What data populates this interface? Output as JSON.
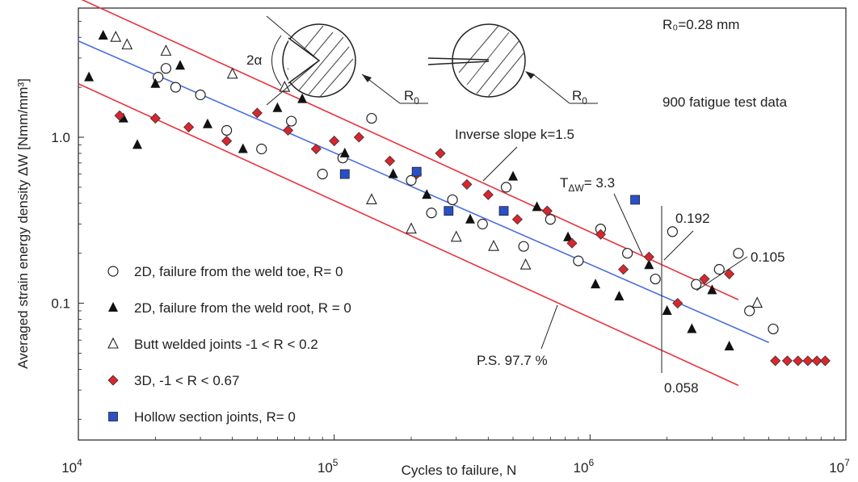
{
  "chart_data": {
    "type": "scatter",
    "xscale": "log",
    "yscale": "log",
    "xlim": [
      10000,
      10000000
    ],
    "ylim": [
      0.015,
      6
    ],
    "xlabel": "Cycles to failure, N",
    "ylabel": "Averaged strain energy density ΔW [Nmm/mm³]",
    "x_ticks": [
      {
        "value": 10000,
        "base": "10",
        "exp": "4"
      },
      {
        "value": 100000,
        "base": "10",
        "exp": "5"
      },
      {
        "value": 1000000,
        "base": "10",
        "exp": "6"
      },
      {
        "value": 10000000,
        "base": "10",
        "exp": "7"
      }
    ],
    "y_ticks": [
      {
        "value": 1.0,
        "label": "1.0"
      },
      {
        "value": 0.1,
        "label": "0.1"
      }
    ],
    "grid": false,
    "legend_position": "bottom-left",
    "bands": [
      {
        "name": "mean",
        "color": "#4a6fdc",
        "points": [
          [
            10000,
            3.8
          ],
          [
            5000000,
            0.058
          ]
        ]
      },
      {
        "name": "upper",
        "color": "#e8323c",
        "points": [
          [
            10000,
            6.9
          ],
          [
            3800000,
            0.105
          ]
        ]
      },
      {
        "name": "lower",
        "color": "#e8323c",
        "points": [
          [
            10000,
            2.1
          ],
          [
            3800000,
            0.032
          ]
        ]
      }
    ],
    "series": [
      {
        "name": "2D, failure from the weld toe, R= 0",
        "marker": "circle",
        "points": [
          [
            20500,
            2.3
          ],
          [
            22000,
            2.6
          ],
          [
            24000,
            2.0
          ],
          [
            30000,
            1.8
          ],
          [
            38000,
            1.1
          ],
          [
            52000,
            0.85
          ],
          [
            68000,
            1.25
          ],
          [
            90000,
            0.6
          ],
          [
            108000,
            0.75
          ],
          [
            140000,
            1.3
          ],
          [
            200000,
            0.55
          ],
          [
            240000,
            0.35
          ],
          [
            290000,
            0.42
          ],
          [
            380000,
            0.3
          ],
          [
            470000,
            0.5
          ],
          [
            550000,
            0.22
          ],
          [
            700000,
            0.32
          ],
          [
            900000,
            0.18
          ],
          [
            1100000,
            0.28
          ],
          [
            1400000,
            0.2
          ],
          [
            1800000,
            0.14
          ],
          [
            2100000,
            0.27
          ],
          [
            2600000,
            0.13
          ],
          [
            3200000,
            0.16
          ],
          [
            3800000,
            0.2
          ],
          [
            4200000,
            0.09
          ],
          [
            5200000,
            0.07
          ]
        ]
      },
      {
        "name": "2D, failure from the weld root, R = 0",
        "marker": "triangle",
        "points": [
          [
            11000,
            2.3
          ],
          [
            12500,
            4.1
          ],
          [
            15000,
            1.3
          ],
          [
            17000,
            0.9
          ],
          [
            20000,
            2.1
          ],
          [
            25000,
            2.7
          ],
          [
            32000,
            1.2
          ],
          [
            44000,
            0.85
          ],
          [
            60000,
            1.5
          ],
          [
            75000,
            1.7
          ],
          [
            110000,
            0.8
          ],
          [
            170000,
            0.6
          ],
          [
            230000,
            0.45
          ],
          [
            340000,
            0.32
          ],
          [
            500000,
            0.58
          ],
          [
            620000,
            0.38
          ],
          [
            820000,
            0.25
          ],
          [
            1050000,
            0.13
          ],
          [
            1300000,
            0.11
          ],
          [
            1700000,
            0.17
          ],
          [
            2000000,
            0.09
          ],
          [
            2500000,
            0.07
          ],
          [
            3000000,
            0.12
          ],
          [
            3500000,
            0.055
          ]
        ]
      },
      {
        "name": "Butt welded joints -1 < R < 0.2",
        "marker": "triangle-open",
        "points": [
          [
            14000,
            4.0
          ],
          [
            15500,
            3.6
          ],
          [
            22000,
            3.3
          ],
          [
            40000,
            2.4
          ],
          [
            64000,
            2.0
          ],
          [
            140000,
            0.42
          ],
          [
            200000,
            0.28
          ],
          [
            300000,
            0.25
          ],
          [
            420000,
            0.22
          ],
          [
            560000,
            0.17
          ],
          [
            4500000,
            0.1
          ]
        ]
      },
      {
        "name": "3D, -1 < R < 0.67",
        "marker": "diamond",
        "points": [
          [
            14500,
            1.35
          ],
          [
            20000,
            1.3
          ],
          [
            27000,
            1.15
          ],
          [
            38000,
            0.95
          ],
          [
            50000,
            1.4
          ],
          [
            66000,
            1.1
          ],
          [
            85000,
            0.85
          ],
          [
            100000,
            0.95
          ],
          [
            125000,
            1.0
          ],
          [
            165000,
            0.72
          ],
          [
            210000,
            0.6
          ],
          [
            260000,
            0.8
          ],
          [
            330000,
            0.52
          ],
          [
            400000,
            0.45
          ],
          [
            520000,
            0.32
          ],
          [
            680000,
            0.36
          ],
          [
            850000,
            0.23
          ],
          [
            1100000,
            0.26
          ],
          [
            1350000,
            0.16
          ],
          [
            1700000,
            0.19
          ],
          [
            2200000,
            0.1
          ],
          [
            2800000,
            0.14
          ],
          [
            3500000,
            0.15
          ],
          [
            5300000,
            0.045
          ],
          [
            5900000,
            0.045
          ],
          [
            6500000,
            0.045
          ],
          [
            7100000,
            0.045
          ],
          [
            7700000,
            0.045
          ],
          [
            8300000,
            0.045
          ]
        ]
      },
      {
        "name": "Hollow section joints, R= 0",
        "marker": "square",
        "points": [
          [
            110000,
            0.6
          ],
          [
            210000,
            0.62
          ],
          [
            280000,
            0.36
          ],
          [
            460000,
            0.36
          ],
          [
            1500000,
            0.42
          ]
        ]
      }
    ],
    "annotations": {
      "r0": "R₀=0.28 mm",
      "fatigue": "900 fatigue test data",
      "slope": "Inverse slope k=1.5",
      "t_prefix": "T",
      "t_sub": "ΔW",
      "t_value": "= 3.3",
      "v0192": "0.192",
      "v0105": "0.105",
      "v0058": "0.058",
      "ps": "P.S. 97.7 %",
      "two_alpha": "2α",
      "r0_left": "R",
      "r0_right": "R",
      "r0_sub": "0"
    }
  }
}
